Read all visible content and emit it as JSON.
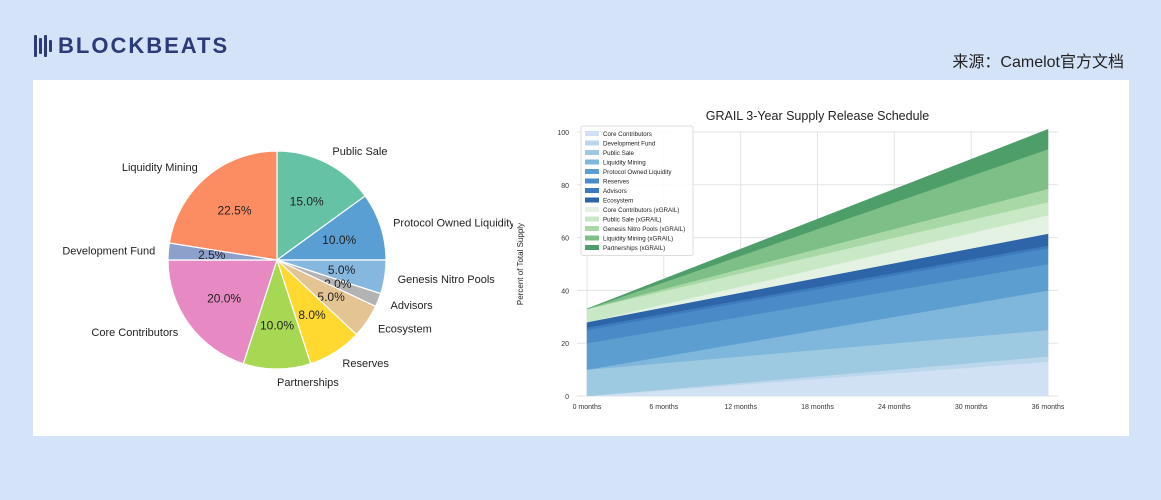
{
  "header": {
    "logo_text": "BLOCKBEATS",
    "source": "来源：Camelot官方文档"
  },
  "chart_data": [
    {
      "type": "pie",
      "title": "",
      "slices": [
        {
          "label": "Public Sale",
          "value": 15.0,
          "pct_label": "15.0%",
          "color": "#66c2a5"
        },
        {
          "label": "Protocol Owned Liquidity",
          "value": 10.0,
          "pct_label": "10.0%",
          "color": "#5a9fd4"
        },
        {
          "label": "Genesis Nitro Pools",
          "value": 5.0,
          "pct_label": "5.0%",
          "color": "#86b8df"
        },
        {
          "label": "Advisors",
          "value": 2.0,
          "pct_label": "2.0%",
          "color": "#b3b3b3"
        },
        {
          "label": "Ecosystem",
          "value": 5.0,
          "pct_label": "5.0%",
          "color": "#e5c494"
        },
        {
          "label": "Reserves",
          "value": 8.0,
          "pct_label": "8.0%",
          "color": "#ffd92f"
        },
        {
          "label": "Partnerships",
          "value": 10.0,
          "pct_label": "10.0%",
          "color": "#a6d854"
        },
        {
          "label": "Core Contributors",
          "value": 20.0,
          "pct_label": "20.0%",
          "color": "#e78ac3"
        },
        {
          "label": "Development Fund",
          "value": 2.5,
          "pct_label": "2.5%",
          "color": "#8da0cb"
        },
        {
          "label": "Liquidity Mining",
          "value": 22.5,
          "pct_label": "22.5%",
          "color": "#fc8d62"
        }
      ]
    },
    {
      "type": "area",
      "title": "GRAIL 3-Year Supply Release Schedule",
      "xlabel": "",
      "ylabel": "Percent of Total Supply",
      "categories": [
        "0 months",
        "6 months",
        "12 months",
        "18 months",
        "24 months",
        "30 months",
        "36 months"
      ],
      "y_ticks": [
        "0",
        "20",
        "40",
        "60",
        "80",
        "100"
      ],
      "ylim": [
        0,
        100
      ],
      "stacked": true,
      "grid": true,
      "legend_position": "top-left",
      "series": [
        {
          "name": "Core Contributors",
          "color": "#cfe1f2",
          "values": [
            0.0,
            2.17,
            4.33,
            6.5,
            8.67,
            10.83,
            13.0
          ]
        },
        {
          "name": "Development Fund",
          "color": "#bcd7ec",
          "values": [
            0.0,
            0.33,
            0.67,
            1.0,
            1.33,
            1.67,
            2.0
          ]
        },
        {
          "name": "Public Sale",
          "color": "#9ecae1",
          "values": [
            10.0,
            10.0,
            10.0,
            10.0,
            10.0,
            10.0,
            10.0
          ]
        },
        {
          "name": "Liquidity Mining",
          "color": "#7fb7dc",
          "values": [
            0.0,
            2.5,
            5.0,
            7.5,
            10.0,
            12.5,
            15.0
          ]
        },
        {
          "name": "Protocol Owned Liquidity",
          "color": "#5d9ed0",
          "values": [
            10.0,
            10.0,
            10.0,
            10.0,
            10.0,
            10.0,
            10.0
          ]
        },
        {
          "name": "Reserves",
          "color": "#4a8bc7",
          "values": [
            5.0,
            5.17,
            5.33,
            5.5,
            5.67,
            5.83,
            6.0
          ]
        },
        {
          "name": "Advisors",
          "color": "#3d7bbf",
          "values": [
            1.0,
            1.0,
            1.0,
            1.0,
            1.0,
            1.0,
            1.0
          ]
        },
        {
          "name": "Ecosystem",
          "color": "#2e64a8",
          "values": [
            2.0,
            2.42,
            2.83,
            3.25,
            3.67,
            4.08,
            4.5
          ]
        },
        {
          "name": "Core Contributors (xGRAIL)",
          "color": "#e3f2e2",
          "values": [
            0.0,
            1.17,
            2.33,
            3.5,
            4.67,
            5.83,
            7.0
          ]
        },
        {
          "name": "Public Sale (xGRAIL)",
          "color": "#c9e8c6",
          "values": [
            5.0,
            5.0,
            5.0,
            5.0,
            5.0,
            5.0,
            5.0
          ]
        },
        {
          "name": "Genesis Nitro Pools (xGRAIL)",
          "color": "#a8d8a6",
          "values": [
            0.0,
            0.83,
            1.67,
            2.5,
            3.33,
            4.17,
            5.0
          ]
        },
        {
          "name": "Liquidity Mining (xGRAIL)",
          "color": "#7dbf86",
          "values": [
            0.0,
            2.5,
            5.0,
            7.5,
            10.0,
            12.5,
            15.0
          ]
        },
        {
          "name": "Partnerships (xGRAIL)",
          "color": "#4e9e6a",
          "values": [
            0.0,
            1.25,
            2.5,
            3.75,
            5.0,
            6.25,
            7.5
          ]
        }
      ]
    }
  ]
}
